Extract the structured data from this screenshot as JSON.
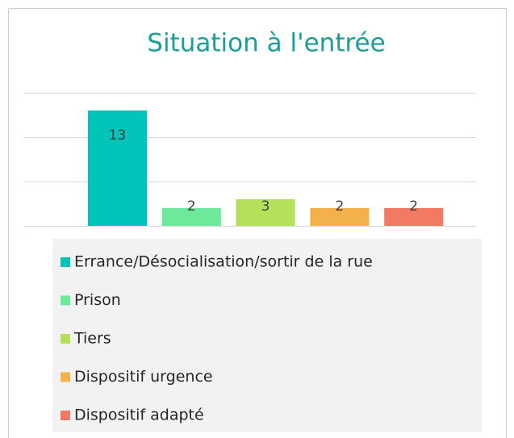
{
  "chart_data": {
    "type": "bar",
    "title": "Situation à l'entrée",
    "categories": [
      "Errance/Désocialisation/sortir de la rue",
      "Prison",
      "Tiers",
      "Dispositif urgence",
      "Dispositif adapté"
    ],
    "values": [
      13,
      2,
      3,
      2,
      2
    ],
    "colors": [
      "#00c4b7",
      "#6ee899",
      "#b5e05a",
      "#f2b14a",
      "#f27a62"
    ],
    "ylim": [
      0,
      15
    ],
    "yticks": [
      0,
      5,
      10,
      15
    ],
    "grid": true,
    "legend": "bottom"
  }
}
